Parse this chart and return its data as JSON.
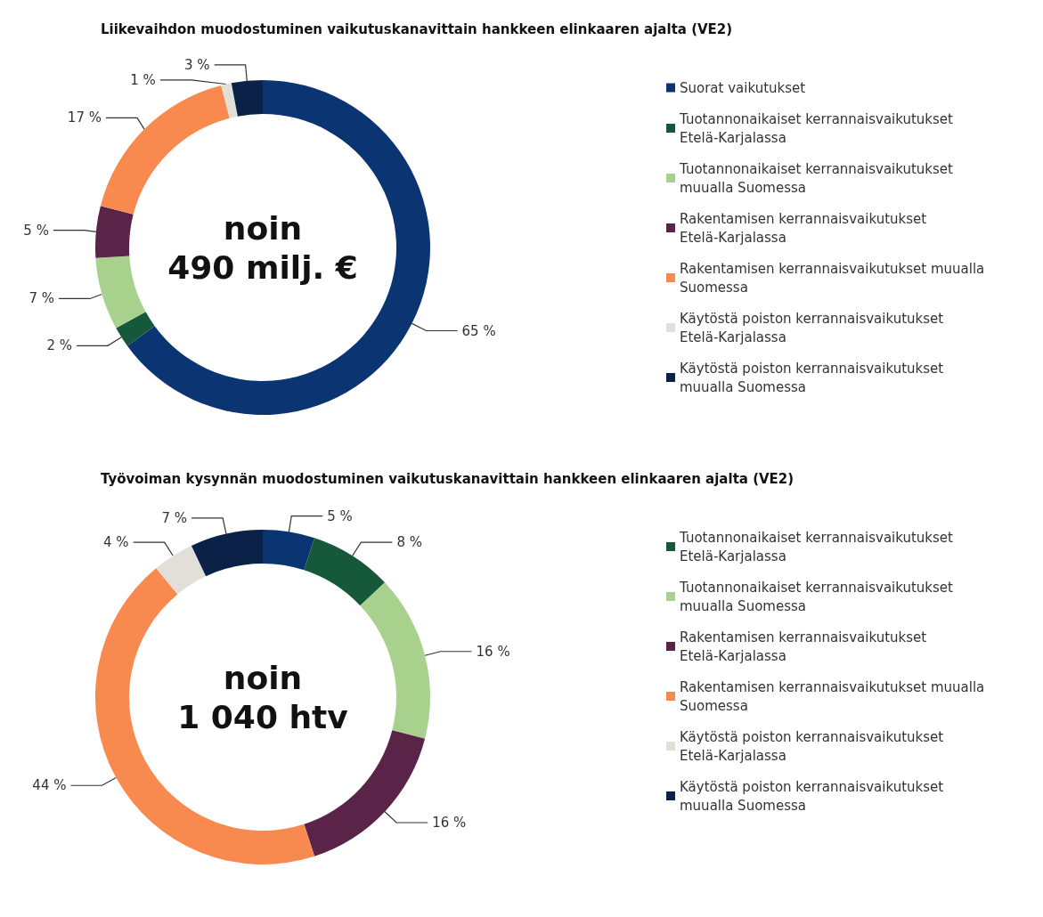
{
  "chart_data": [
    {
      "type": "donut",
      "title": "Liikevaihdon muodostuminen vaikutuskanavittain hankkeen elinkaaren ajalta (VE2)",
      "categories": [
        "Suorat vaikutukset",
        "Tuotannonaikaiset kerrannaisvaikutukset Etelä-Karjalassa",
        "Tuotannonaikaiset kerrannaisvaikutukset muualla Suomessa",
        "Rakentamisen kerrannaisvaikutukset Etelä-Karjalassa",
        "Rakentamisen kerrannaisvaikutukset muualla Suomessa",
        "Käytöstä poiston kerrannaisvaikutukset Etelä-Karjalassa",
        "Käytöstä poiston kerrannaisvaikutukset muualla Suomessa"
      ],
      "values": [
        65,
        2,
        7,
        5,
        17,
        1,
        3
      ],
      "value_labels": [
        "65 %",
        "2 %",
        "7 %",
        "5 %",
        "17 %",
        "1 %",
        "3 %"
      ],
      "colors": [
        "#0b3472",
        "#15593a",
        "#a9d18e",
        "#5a2448",
        "#f8894f",
        "#e2dfd8",
        "#0c2148"
      ],
      "annotations": [
        "noin\n490 milj. €"
      ],
      "legend": "right"
    },
    {
      "type": "donut",
      "title": "Työvoiman kysynnän muodostuminen vaikutuskanavittain hankkeen elinkaaren ajalta (VE2)",
      "categories": [
        null,
        "Tuotannonaikaiset kerrannaisvaikutukset Etelä-Karjalassa",
        "Tuotannonaikaiset kerrannaisvaikutukset muualla Suomessa",
        "Rakentamisen kerrannaisvaikutukset Etelä-Karjalassa",
        "Rakentamisen kerrannaisvaikutukset muualla Suomessa",
        "Käytöstä poiston kerrannaisvaikutukset Etelä-Karjalassa",
        "Käytöstä poiston kerrannaisvaikutukset muualla Suomessa"
      ],
      "values": [
        5,
        8,
        16,
        16,
        44,
        4,
        7
      ],
      "value_labels": [
        "5 %",
        "8 %",
        "16 %",
        "16 %",
        "44 %",
        "4 %",
        "7 %"
      ],
      "colors": [
        "#0b3472",
        "#15593a",
        "#a9d18e",
        "#5a2448",
        "#f8894f",
        "#e2dfd8",
        "#0c2148"
      ],
      "annotations": [
        "noin\n1 040 htv"
      ],
      "legend": "right"
    }
  ]
}
